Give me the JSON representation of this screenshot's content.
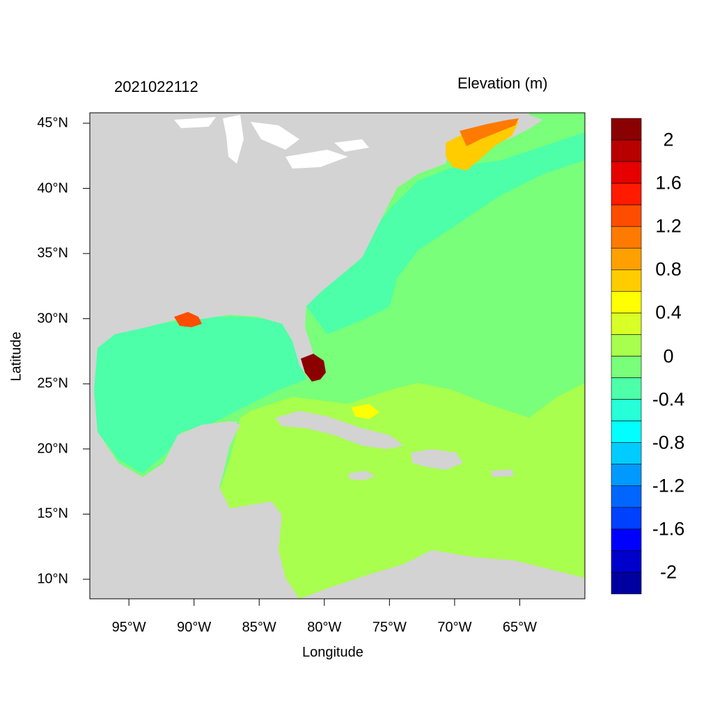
{
  "left_title": "2021022112",
  "right_title": "Elevation (m)",
  "x_axis": {
    "label": "Longitude",
    "ticks": [
      {
        "value": -95,
        "label": "95°W"
      },
      {
        "value": -90,
        "label": "90°W"
      },
      {
        "value": -85,
        "label": "85°W"
      },
      {
        "value": -80,
        "label": "80°W"
      },
      {
        "value": -75,
        "label": "75°W"
      },
      {
        "value": -70,
        "label": "70°W"
      },
      {
        "value": -65,
        "label": "65°W"
      }
    ],
    "range": [
      -98,
      -60
    ]
  },
  "y_axis": {
    "label": "Latitude",
    "ticks": [
      {
        "value": 45,
        "label": "45°N"
      },
      {
        "value": 40,
        "label": "40°N"
      },
      {
        "value": 35,
        "label": "35°N"
      },
      {
        "value": 30,
        "label": "30°N"
      },
      {
        "value": 25,
        "label": "25°N"
      },
      {
        "value": 20,
        "label": "20°N"
      },
      {
        "value": 15,
        "label": "15°N"
      },
      {
        "value": 10,
        "label": "10°N"
      }
    ],
    "range": [
      8.5,
      45.8
    ]
  },
  "colorbar": {
    "labels": [
      {
        "value": 2,
        "label": "2"
      },
      {
        "value": 1.6,
        "label": "1.6"
      },
      {
        "value": 1.2,
        "label": "1.2"
      },
      {
        "value": 0.8,
        "label": "0.8"
      },
      {
        "value": 0.4,
        "label": "0.4"
      },
      {
        "value": 0,
        "label": "0"
      },
      {
        "value": -0.4,
        "label": "-0.4"
      },
      {
        "value": -0.8,
        "label": "-0.8"
      },
      {
        "value": -1.2,
        "label": "-1.2"
      },
      {
        "value": -1.6,
        "label": "-1.6"
      },
      {
        "value": -2,
        "label": "-2"
      }
    ],
    "colors_top_to_bottom": [
      "#8b0000",
      "#b80000",
      "#e60000",
      "#ff1a00",
      "#ff4d00",
      "#ff7a00",
      "#ffa000",
      "#ffcc00",
      "#ffff00",
      "#d8ff26",
      "#a8ff4d",
      "#79ff79",
      "#4dffa8",
      "#26ffd8",
      "#00ffff",
      "#00ccff",
      "#0099ff",
      "#0066ff",
      "#0040ff",
      "#0000ff",
      "#0000cc",
      "#0000a0"
    ]
  },
  "map_colors": {
    "land": "#d3d3d3",
    "water_background": "#ffffff",
    "gulf": "#4dffa8",
    "atlantic": "#79ff79",
    "caribbean": "#a8ff4d",
    "gulf_of_maine": "#ffcc00",
    "florida_surge": "#8b0000"
  }
}
